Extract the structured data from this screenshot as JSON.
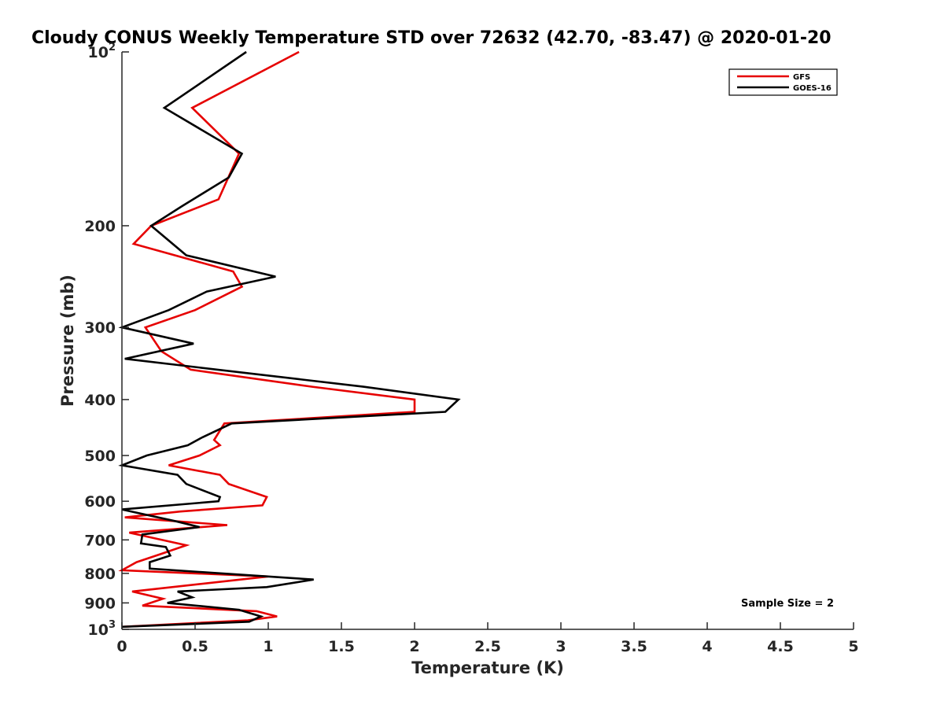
{
  "chart_data": {
    "type": "line",
    "title": "Cloudy CONUS Weekly Temperature STD over 72632 (42.70, -83.47) @ 2020-01-20",
    "xlabel": "Temperature (K)",
    "ylabel": "Pressure (mb)",
    "xlim": [
      0,
      5
    ],
    "ylim": [
      1000,
      100
    ],
    "y_scale": "log",
    "y_reversed": true,
    "grid": false,
    "legend_position": "top-right",
    "x_ticks": [
      "0",
      "0.5",
      "1",
      "1.5",
      "2",
      "2.5",
      "3",
      "3.5",
      "4",
      "4.5",
      "5"
    ],
    "x_tick_values": [
      0,
      0.5,
      1,
      1.5,
      2,
      2.5,
      3,
      3.5,
      4,
      4.5,
      5
    ],
    "y_ticks": [
      {
        "value": 100,
        "base": "10",
        "exp": "2"
      },
      {
        "value": 200,
        "base": "200",
        "exp": ""
      },
      {
        "value": 300,
        "base": "300",
        "exp": ""
      },
      {
        "value": 400,
        "base": "400",
        "exp": ""
      },
      {
        "value": 500,
        "base": "500",
        "exp": ""
      },
      {
        "value": 600,
        "base": "600",
        "exp": ""
      },
      {
        "value": 700,
        "base": "700",
        "exp": ""
      },
      {
        "value": 800,
        "base": "800",
        "exp": ""
      },
      {
        "value": 900,
        "base": "900",
        "exp": ""
      },
      {
        "value": 1000,
        "base": "10",
        "exp": "3"
      }
    ],
    "annotation": "Sample Size = 2",
    "series": [
      {
        "name": "GFS",
        "color": "#e60000",
        "points": [
          [
            1.21,
            100
          ],
          [
            0.48,
            125
          ],
          [
            0.8,
            150
          ],
          [
            0.66,
            180
          ],
          [
            0.2,
            200
          ],
          [
            0.08,
            215
          ],
          [
            0.76,
            240
          ],
          [
            0.82,
            255
          ],
          [
            0.5,
            280
          ],
          [
            0.16,
            300
          ],
          [
            0.27,
            330
          ],
          [
            0.47,
            355
          ],
          [
            1.3,
            380
          ],
          [
            2.0,
            400
          ],
          [
            2.0,
            420
          ],
          [
            0.7,
            440
          ],
          [
            0.63,
            470
          ],
          [
            0.67,
            480
          ],
          [
            0.53,
            500
          ],
          [
            0.32,
            520
          ],
          [
            0.67,
            540
          ],
          [
            0.73,
            560
          ],
          [
            0.99,
            590
          ],
          [
            0.96,
            610
          ],
          [
            0.4,
            625
          ],
          [
            0.02,
            640
          ],
          [
            0.72,
            660
          ],
          [
            0.05,
            680
          ],
          [
            0.44,
            715
          ],
          [
            0.27,
            740
          ],
          [
            0.1,
            765
          ],
          [
            0.0,
            790
          ],
          [
            1.0,
            810
          ],
          [
            0.07,
            860
          ],
          [
            0.28,
            885
          ],
          [
            0.14,
            910
          ],
          [
            0.92,
            930
          ],
          [
            1.06,
            950
          ],
          [
            0.86,
            965
          ],
          [
            0.0,
            990
          ]
        ]
      },
      {
        "name": "GOES-16",
        "color": "#000000",
        "points": [
          [
            0.85,
            100
          ],
          [
            0.29,
            125
          ],
          [
            0.82,
            150
          ],
          [
            0.73,
            165
          ],
          [
            0.41,
            185
          ],
          [
            0.2,
            200
          ],
          [
            0.44,
            225
          ],
          [
            1.05,
            245
          ],
          [
            0.58,
            260
          ],
          [
            0.32,
            280
          ],
          [
            0.0,
            300
          ],
          [
            0.49,
            320
          ],
          [
            0.02,
            340
          ],
          [
            1.65,
            380
          ],
          [
            2.3,
            400
          ],
          [
            2.21,
            420
          ],
          [
            0.75,
            440
          ],
          [
            0.55,
            465
          ],
          [
            0.45,
            480
          ],
          [
            0.17,
            500
          ],
          [
            0.0,
            520
          ],
          [
            0.38,
            540
          ],
          [
            0.44,
            560
          ],
          [
            0.67,
            590
          ],
          [
            0.66,
            600
          ],
          [
            0.0,
            620
          ],
          [
            0.37,
            650
          ],
          [
            0.53,
            665
          ],
          [
            0.14,
            685
          ],
          [
            0.13,
            710
          ],
          [
            0.3,
            720
          ],
          [
            0.33,
            745
          ],
          [
            0.19,
            765
          ],
          [
            0.19,
            785
          ],
          [
            1.31,
            820
          ],
          [
            0.99,
            845
          ],
          [
            0.38,
            860
          ],
          [
            0.48,
            880
          ],
          [
            0.31,
            900
          ],
          [
            0.8,
            925
          ],
          [
            0.95,
            950
          ],
          [
            0.87,
            970
          ],
          [
            0.0,
            990
          ]
        ]
      }
    ]
  }
}
